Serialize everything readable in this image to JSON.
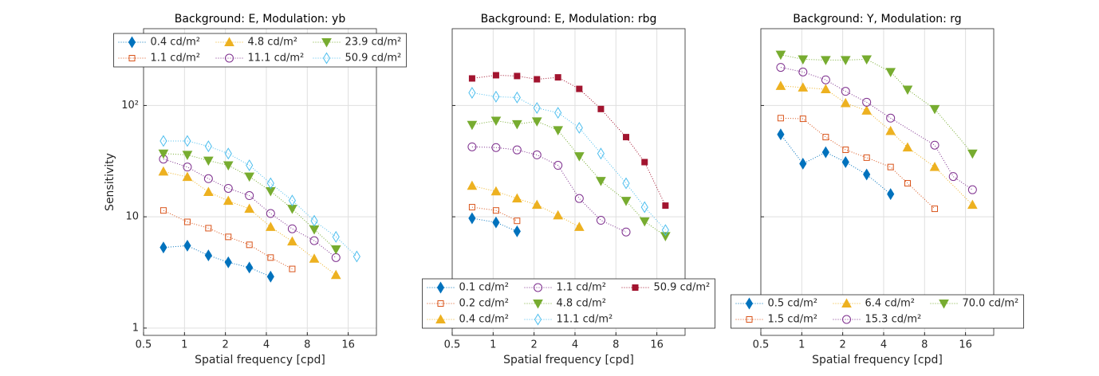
{
  "chart_data": [
    {
      "type": "line",
      "title": "Background: E, Modulation: yb",
      "xlabel": "Spatial frequency [cpd]",
      "ylabel": "Sensitivity",
      "log_x": true,
      "log_y": true,
      "grid": true,
      "legend": "north",
      "xlim": [
        0.5,
        25.8
      ],
      "ylim": [
        0.86,
        490
      ],
      "xticks": [
        0.5,
        1,
        2,
        4,
        8,
        16
      ],
      "yticks": [
        1,
        10,
        {
          "value": 100,
          "label": "10²"
        }
      ],
      "ytick_labels": true,
      "series": [
        {
          "name": "0.4 cd/m²",
          "color": "#0072bd",
          "marker": "diamond",
          "filled": true,
          "x": [
            0.7,
            1.05,
            1.5,
            2.1,
            3,
            4.3
          ],
          "values": [
            5.3,
            5.5,
            4.5,
            3.9,
            3.5,
            2.9
          ]
        },
        {
          "name": "1.1 cd/m²",
          "color": "#d95319",
          "marker": "square",
          "filled": false,
          "x": [
            0.7,
            1.05,
            1.5,
            2.1,
            3,
            4.3,
            6.2
          ],
          "values": [
            11.4,
            9,
            7.9,
            6.6,
            5.6,
            4.3,
            3.4
          ]
        },
        {
          "name": "4.8 cd/m²",
          "color": "#edb120",
          "marker": "triangle",
          "filled": true,
          "x": [
            0.7,
            1.05,
            1.5,
            2.1,
            3,
            4.3,
            6.2,
            9,
            13
          ],
          "values": [
            25.5,
            22.8,
            16.7,
            13.9,
            11.8,
            8.1,
            6,
            4.2,
            3
          ]
        },
        {
          "name": "11.1 cd/m²",
          "color": "#7e2f8e",
          "marker": "circle",
          "filled": false,
          "x": [
            0.7,
            1.05,
            1.5,
            2.1,
            3,
            4.3,
            6.2,
            9,
            13
          ],
          "values": [
            33,
            28,
            22,
            18,
            15.5,
            10.7,
            7.8,
            6.1,
            4.3
          ]
        },
        {
          "name": "23.9 cd/m²",
          "color": "#77ac30",
          "marker": "triangle-down",
          "filled": true,
          "x": [
            0.7,
            1.05,
            1.5,
            2.1,
            3,
            4.3,
            6.2,
            9,
            13
          ],
          "values": [
            37,
            36,
            32,
            29,
            23,
            17,
            11.8,
            7.7,
            5.1
          ]
        },
        {
          "name": "50.9 cd/m²",
          "color": "#4dbeee",
          "marker": "diamond",
          "filled": false,
          "x": [
            0.7,
            1.05,
            1.5,
            2.1,
            3,
            4.3,
            6.2,
            9,
            13,
            18.5
          ],
          "values": [
            48,
            48,
            43,
            37,
            29,
            20,
            14,
            9.2,
            6.6,
            4.4
          ]
        }
      ]
    },
    {
      "type": "line",
      "title": "Background: E, Modulation: rbg",
      "xlabel": "Spatial frequency [cpd]",
      "log_x": true,
      "log_y": true,
      "grid": true,
      "legend": "south",
      "xlim": [
        0.5,
        25.8
      ],
      "ylim": [
        0.86,
        490
      ],
      "xticks": [
        0.5,
        1,
        2,
        4,
        8,
        16
      ],
      "yticks": [
        1,
        10,
        100
      ],
      "ytick_labels": false,
      "series": [
        {
          "name": "0.1 cd/m²",
          "color": "#0072bd",
          "marker": "diamond",
          "filled": true,
          "x": [
            0.7,
            1.05,
            1.5
          ],
          "values": [
            9.7,
            8.9,
            7.4
          ]
        },
        {
          "name": "0.2 cd/m²",
          "color": "#d95319",
          "marker": "square",
          "filled": false,
          "x": [
            0.7,
            1.05,
            1.5
          ],
          "values": [
            12.2,
            11.4,
            9.2
          ]
        },
        {
          "name": "0.4 cd/m²",
          "color": "#edb120",
          "marker": "triangle",
          "filled": true,
          "x": [
            0.7,
            1.05,
            1.5,
            2.1,
            3,
            4.3
          ],
          "values": [
            19,
            16.9,
            14.6,
            12.8,
            10.3,
            8.1
          ]
        },
        {
          "name": "1.1 cd/m²",
          "color": "#7e2f8e",
          "marker": "circle",
          "filled": false,
          "x": [
            0.7,
            1.05,
            1.5,
            2.1,
            3,
            4.3,
            6.2,
            9.5
          ],
          "values": [
            42.5,
            41.9,
            39.9,
            36,
            29,
            14.6,
            9.3,
            7.3
          ]
        },
        {
          "name": "4.8 cd/m²",
          "color": "#77ac30",
          "marker": "triangle-down",
          "filled": true,
          "x": [
            0.7,
            1.05,
            1.5,
            2.1,
            3,
            4.3,
            6.2,
            9.5,
            13,
            18.5
          ],
          "values": [
            67,
            73,
            68,
            72,
            60,
            35,
            21,
            13.9,
            9.1,
            6.7
          ]
        },
        {
          "name": "11.1 cd/m²",
          "color": "#4dbeee",
          "marker": "diamond",
          "filled": false,
          "x": [
            0.7,
            1.05,
            1.5,
            2.1,
            3,
            4.3,
            6.2,
            9.5,
            13,
            18.5
          ],
          "values": [
            130,
            120,
            118,
            95,
            86,
            63,
            37,
            20,
            12.2,
            7.6
          ]
        },
        {
          "name": "50.9 cd/m²",
          "color": "#a2142f",
          "marker": "square",
          "filled": true,
          "x": [
            0.7,
            1.05,
            1.5,
            2.1,
            3,
            4.3,
            6.2,
            9.5,
            13,
            18.5
          ],
          "values": [
            175,
            187,
            184,
            172,
            179,
            141,
            93,
            52,
            31,
            12.6
          ]
        }
      ]
    },
    {
      "type": "line",
      "title": "Background: Y, Modulation: rg",
      "xlabel": "Spatial frequency [cpd]",
      "log_x": true,
      "log_y": true,
      "grid": true,
      "legend": "south",
      "xlim": [
        0.5,
        25.8
      ],
      "ylim": [
        0.86,
        490
      ],
      "xticks": [
        0.5,
        1,
        2,
        4,
        8,
        16
      ],
      "yticks": [
        1,
        10,
        100
      ],
      "ytick_labels": false,
      "series": [
        {
          "name": "0.5 cd/m²",
          "color": "#0072bd",
          "marker": "diamond",
          "filled": true,
          "x": [
            0.7,
            1.02,
            1.5,
            2.1,
            3,
            4.5
          ],
          "values": [
            55,
            30,
            38,
            31,
            24,
            16
          ]
        },
        {
          "name": "1.5 cd/m²",
          "color": "#d95319",
          "marker": "square",
          "filled": false,
          "x": [
            0.7,
            1.02,
            1.5,
            2.1,
            3,
            4.5,
            6,
            9.5
          ],
          "values": [
            77,
            76,
            52,
            40,
            34,
            28,
            20,
            11.8
          ]
        },
        {
          "name": "6.4 cd/m²",
          "color": "#edb120",
          "marker": "triangle",
          "filled": true,
          "x": [
            0.7,
            1.02,
            1.5,
            2.1,
            3,
            4.5,
            6,
            9.5,
            18
          ],
          "values": [
            150,
            145,
            140,
            105,
            90,
            59,
            42,
            28,
            12.8
          ]
        },
        {
          "name": "15.3 cd/m²",
          "color": "#7e2f8e",
          "marker": "circle",
          "filled": false,
          "x": [
            0.7,
            1.02,
            1.5,
            2.1,
            3,
            4.5,
            9.5,
            13,
            18
          ],
          "values": [
            220,
            200,
            170,
            134,
            107,
            77,
            44,
            23,
            17.5
          ]
        },
        {
          "name": "70.0 cd/m²",
          "color": "#77ac30",
          "marker": "triangle-down",
          "filled": true,
          "x": [
            0.7,
            1.02,
            1.5,
            2.1,
            3,
            4.5,
            6,
            9.5,
            18
          ],
          "values": [
            286,
            260,
            256,
            256,
            260,
            200,
            139,
            93,
            37
          ]
        }
      ]
    }
  ]
}
